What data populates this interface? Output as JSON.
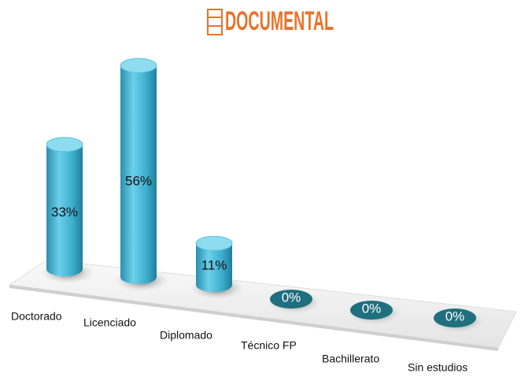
{
  "logo": "DOCUMENTAL",
  "chart_data": {
    "type": "bar",
    "categories": [
      "Doctorado",
      "Licenciado",
      "Diplomado",
      "Técnico FP",
      "Bachillerato",
      "Sin estudios"
    ],
    "values": [
      33,
      56,
      11,
      0,
      0,
      0
    ],
    "value_labels": [
      "33%",
      "56%",
      "11%",
      "0%",
      "0%",
      "0%"
    ],
    "color": "#3fb0cf"
  }
}
